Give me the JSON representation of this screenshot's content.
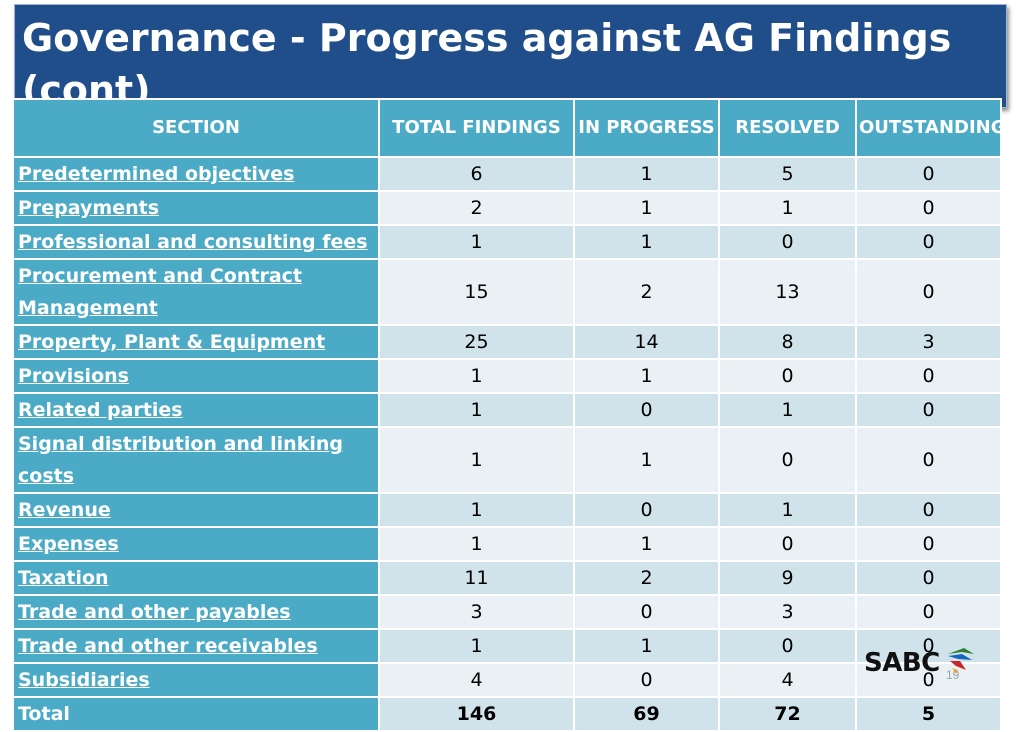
{
  "title": "Governance - Progress against AG Findings (cont)",
  "table": {
    "headers": [
      "SECTION",
      "TOTAL FINDINGS",
      "IN PROGRESS",
      "RESOLVED",
      "OUTSTANDING"
    ],
    "rows": [
      {
        "section": "Predetermined objectives",
        "total": "6",
        "in_progress": "1",
        "resolved": "5",
        "outstanding": "0"
      },
      {
        "section": "Prepayments",
        "total": "2",
        "in_progress": "1",
        "resolved": "1",
        "outstanding": "0"
      },
      {
        "section": "Professional and consulting fees",
        "total": "1",
        "in_progress": "1",
        "resolved": "0",
        "outstanding": "0"
      },
      {
        "section": "Procurement and Contract Management",
        "total": "15",
        "in_progress": "2",
        "resolved": "13",
        "outstanding": "0"
      },
      {
        "section": "Property, Plant & Equipment",
        "total": "25",
        "in_progress": "14",
        "resolved": "8",
        "outstanding": "3"
      },
      {
        "section": "Provisions",
        "total": "1",
        "in_progress": "1",
        "resolved": "0",
        "outstanding": "0"
      },
      {
        "section": "Related parties",
        "total": "1",
        "in_progress": "0",
        "resolved": "1",
        "outstanding": "0"
      },
      {
        "section": "Signal distribution and linking costs",
        "total": "1",
        "in_progress": "1",
        "resolved": "0",
        "outstanding": "0"
      },
      {
        "section": "Revenue",
        "total": "1",
        "in_progress": "0",
        "resolved": "1",
        "outstanding": "0"
      },
      {
        "section": "Expenses",
        "total": "1",
        "in_progress": "1",
        "resolved": "0",
        "outstanding": "0"
      },
      {
        "section": "Taxation",
        "total": "11",
        "in_progress": "2",
        "resolved": "9",
        "outstanding": "0"
      },
      {
        "section": "Trade and other payables",
        "total": "3",
        "in_progress": "0",
        "resolved": "3",
        "outstanding": "0"
      },
      {
        "section": "Trade and other receivables",
        "total": "1",
        "in_progress": "1",
        "resolved": "0",
        "outstanding": "0"
      },
      {
        "section": "Subsidiaries",
        "total": "4",
        "in_progress": "0",
        "resolved": "4",
        "outstanding": "0"
      },
      {
        "section": "Total",
        "total": "146",
        "in_progress": "69",
        "resolved": "72",
        "outstanding": "5"
      }
    ]
  },
  "logo": {
    "text": "SABC"
  },
  "page_number": "19",
  "colors": {
    "title_bg": "#1f4e8a",
    "header_bg": "#4babc6",
    "row_light": "#e9f1f5",
    "row_dark": "#d0e3ea"
  }
}
